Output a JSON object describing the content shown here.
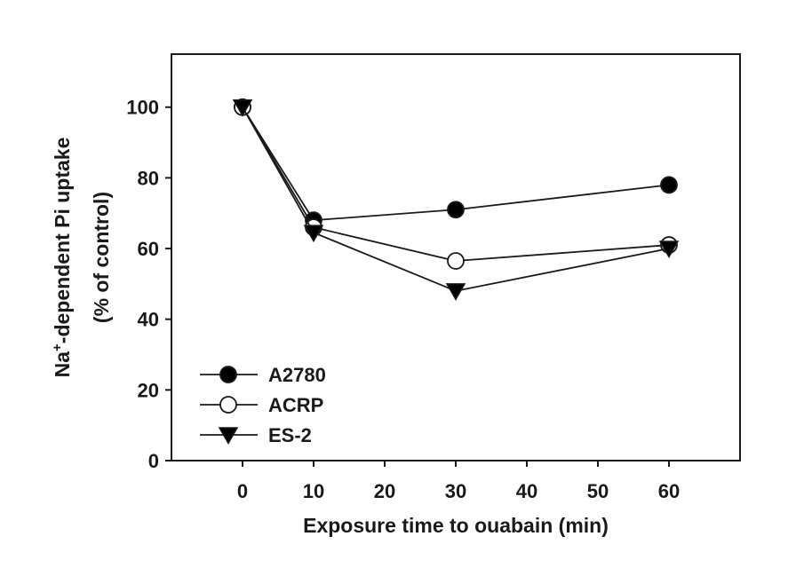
{
  "chart_data": {
    "type": "line",
    "x": [
      0,
      10,
      30,
      60
    ],
    "series": [
      {
        "name": "A2780",
        "marker": "filled-circle",
        "values": [
          100,
          68,
          71,
          78
        ]
      },
      {
        "name": "ACRP",
        "marker": "open-circle",
        "values": [
          100,
          66,
          56.5,
          61
        ]
      },
      {
        "name": "ES-2",
        "marker": "filled-triangle-down",
        "values": [
          100,
          64.5,
          48,
          60
        ]
      }
    ],
    "xlabel": "Exposure time to ouabain (min)",
    "ylabel_prefix": "Na",
    "ylabel_superscript": "+",
    "ylabel_rest": "-dependent Pi uptake",
    "ylabel_line2": "(% of control)",
    "xlim": [
      -10,
      70
    ],
    "ylim": [
      0,
      115
    ],
    "xticks": [
      0,
      10,
      20,
      30,
      40,
      50,
      60
    ],
    "yticks": [
      0,
      20,
      40,
      60,
      80,
      100
    ],
    "legend_position": "bottom-left",
    "grid": false,
    "colors": {
      "line": "#1a1a1a",
      "fill": "#000000",
      "open": "#ffffff"
    }
  }
}
